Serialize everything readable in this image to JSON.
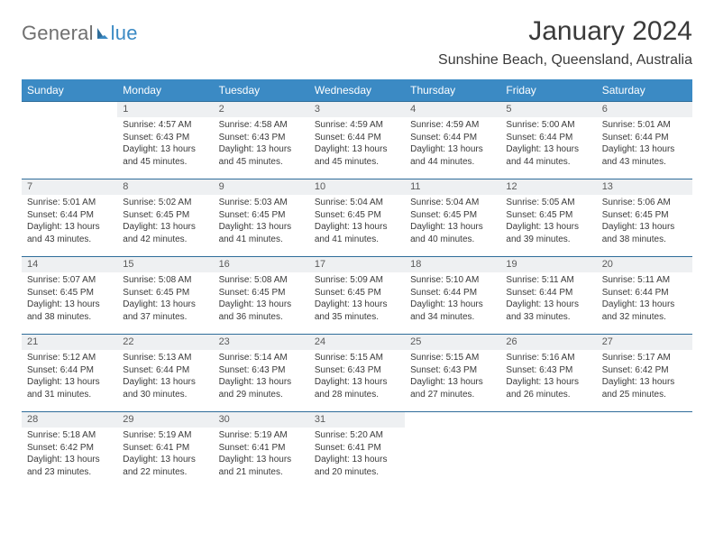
{
  "logo": {
    "text1": "General",
    "text2": "lue"
  },
  "title": "January 2024",
  "location": "Sunshine Beach, Queensland, Australia",
  "colors": {
    "header_bg": "#3b8ac4",
    "header_text": "#ffffff",
    "daynum_bg": "#eef0f2",
    "border": "#2f6d9a",
    "body_text": "#3a3a3a",
    "logo_gray": "#707070",
    "logo_blue": "#3b8ac4"
  },
  "day_headers": [
    "Sunday",
    "Monday",
    "Tuesday",
    "Wednesday",
    "Thursday",
    "Friday",
    "Saturday"
  ],
  "weeks": [
    [
      {
        "n": "",
        "sr": "",
        "ss": "",
        "dl": ""
      },
      {
        "n": "1",
        "sr": "Sunrise: 4:57 AM",
        "ss": "Sunset: 6:43 PM",
        "dl": "Daylight: 13 hours and 45 minutes."
      },
      {
        "n": "2",
        "sr": "Sunrise: 4:58 AM",
        "ss": "Sunset: 6:43 PM",
        "dl": "Daylight: 13 hours and 45 minutes."
      },
      {
        "n": "3",
        "sr": "Sunrise: 4:59 AM",
        "ss": "Sunset: 6:44 PM",
        "dl": "Daylight: 13 hours and 45 minutes."
      },
      {
        "n": "4",
        "sr": "Sunrise: 4:59 AM",
        "ss": "Sunset: 6:44 PM",
        "dl": "Daylight: 13 hours and 44 minutes."
      },
      {
        "n": "5",
        "sr": "Sunrise: 5:00 AM",
        "ss": "Sunset: 6:44 PM",
        "dl": "Daylight: 13 hours and 44 minutes."
      },
      {
        "n": "6",
        "sr": "Sunrise: 5:01 AM",
        "ss": "Sunset: 6:44 PM",
        "dl": "Daylight: 13 hours and 43 minutes."
      }
    ],
    [
      {
        "n": "7",
        "sr": "Sunrise: 5:01 AM",
        "ss": "Sunset: 6:44 PM",
        "dl": "Daylight: 13 hours and 43 minutes."
      },
      {
        "n": "8",
        "sr": "Sunrise: 5:02 AM",
        "ss": "Sunset: 6:45 PM",
        "dl": "Daylight: 13 hours and 42 minutes."
      },
      {
        "n": "9",
        "sr": "Sunrise: 5:03 AM",
        "ss": "Sunset: 6:45 PM",
        "dl": "Daylight: 13 hours and 41 minutes."
      },
      {
        "n": "10",
        "sr": "Sunrise: 5:04 AM",
        "ss": "Sunset: 6:45 PM",
        "dl": "Daylight: 13 hours and 41 minutes."
      },
      {
        "n": "11",
        "sr": "Sunrise: 5:04 AM",
        "ss": "Sunset: 6:45 PM",
        "dl": "Daylight: 13 hours and 40 minutes."
      },
      {
        "n": "12",
        "sr": "Sunrise: 5:05 AM",
        "ss": "Sunset: 6:45 PM",
        "dl": "Daylight: 13 hours and 39 minutes."
      },
      {
        "n": "13",
        "sr": "Sunrise: 5:06 AM",
        "ss": "Sunset: 6:45 PM",
        "dl": "Daylight: 13 hours and 38 minutes."
      }
    ],
    [
      {
        "n": "14",
        "sr": "Sunrise: 5:07 AM",
        "ss": "Sunset: 6:45 PM",
        "dl": "Daylight: 13 hours and 38 minutes."
      },
      {
        "n": "15",
        "sr": "Sunrise: 5:08 AM",
        "ss": "Sunset: 6:45 PM",
        "dl": "Daylight: 13 hours and 37 minutes."
      },
      {
        "n": "16",
        "sr": "Sunrise: 5:08 AM",
        "ss": "Sunset: 6:45 PM",
        "dl": "Daylight: 13 hours and 36 minutes."
      },
      {
        "n": "17",
        "sr": "Sunrise: 5:09 AM",
        "ss": "Sunset: 6:45 PM",
        "dl": "Daylight: 13 hours and 35 minutes."
      },
      {
        "n": "18",
        "sr": "Sunrise: 5:10 AM",
        "ss": "Sunset: 6:44 PM",
        "dl": "Daylight: 13 hours and 34 minutes."
      },
      {
        "n": "19",
        "sr": "Sunrise: 5:11 AM",
        "ss": "Sunset: 6:44 PM",
        "dl": "Daylight: 13 hours and 33 minutes."
      },
      {
        "n": "20",
        "sr": "Sunrise: 5:11 AM",
        "ss": "Sunset: 6:44 PM",
        "dl": "Daylight: 13 hours and 32 minutes."
      }
    ],
    [
      {
        "n": "21",
        "sr": "Sunrise: 5:12 AM",
        "ss": "Sunset: 6:44 PM",
        "dl": "Daylight: 13 hours and 31 minutes."
      },
      {
        "n": "22",
        "sr": "Sunrise: 5:13 AM",
        "ss": "Sunset: 6:44 PM",
        "dl": "Daylight: 13 hours and 30 minutes."
      },
      {
        "n": "23",
        "sr": "Sunrise: 5:14 AM",
        "ss": "Sunset: 6:43 PM",
        "dl": "Daylight: 13 hours and 29 minutes."
      },
      {
        "n": "24",
        "sr": "Sunrise: 5:15 AM",
        "ss": "Sunset: 6:43 PM",
        "dl": "Daylight: 13 hours and 28 minutes."
      },
      {
        "n": "25",
        "sr": "Sunrise: 5:15 AM",
        "ss": "Sunset: 6:43 PM",
        "dl": "Daylight: 13 hours and 27 minutes."
      },
      {
        "n": "26",
        "sr": "Sunrise: 5:16 AM",
        "ss": "Sunset: 6:43 PM",
        "dl": "Daylight: 13 hours and 26 minutes."
      },
      {
        "n": "27",
        "sr": "Sunrise: 5:17 AM",
        "ss": "Sunset: 6:42 PM",
        "dl": "Daylight: 13 hours and 25 minutes."
      }
    ],
    [
      {
        "n": "28",
        "sr": "Sunrise: 5:18 AM",
        "ss": "Sunset: 6:42 PM",
        "dl": "Daylight: 13 hours and 23 minutes."
      },
      {
        "n": "29",
        "sr": "Sunrise: 5:19 AM",
        "ss": "Sunset: 6:41 PM",
        "dl": "Daylight: 13 hours and 22 minutes."
      },
      {
        "n": "30",
        "sr": "Sunrise: 5:19 AM",
        "ss": "Sunset: 6:41 PM",
        "dl": "Daylight: 13 hours and 21 minutes."
      },
      {
        "n": "31",
        "sr": "Sunrise: 5:20 AM",
        "ss": "Sunset: 6:41 PM",
        "dl": "Daylight: 13 hours and 20 minutes."
      },
      {
        "n": "",
        "sr": "",
        "ss": "",
        "dl": ""
      },
      {
        "n": "",
        "sr": "",
        "ss": "",
        "dl": ""
      },
      {
        "n": "",
        "sr": "",
        "ss": "",
        "dl": ""
      }
    ]
  ]
}
